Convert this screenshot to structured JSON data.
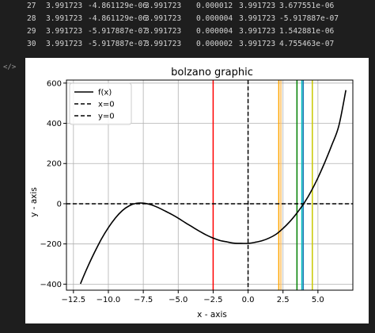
{
  "output_rows": [
    [
      "27",
      "3.991723",
      "-4.861129e-06",
      "3.991723",
      "0.000012",
      "3.991723",
      "3.677551e-06"
    ],
    [
      "28",
      "3.991723",
      "-4.861129e-06",
      "3.991723",
      "0.000004",
      "3.991723",
      "-5.917887e-07"
    ],
    [
      "29",
      "3.991723",
      "-5.917887e-07",
      "3.991723",
      "0.000004",
      "3.991723",
      "1.542881e-06"
    ],
    [
      "30",
      "3.991723",
      "-5.917887e-07",
      "3.991723",
      "0.000002",
      "3.991723",
      "4.755463e-07"
    ]
  ],
  "cell_icon": "</>",
  "chart_data": {
    "type": "line",
    "title": "bolzano graphic",
    "xlabel": "x - axis",
    "ylabel": "y - axis",
    "xlim": [
      -13,
      7.5
    ],
    "ylim": [
      -430,
      615
    ],
    "xticks": [
      -12.5,
      -10.0,
      -7.5,
      -5.0,
      -2.5,
      0.0,
      2.5,
      5.0
    ],
    "xtick_labels": [
      "−12.5",
      "−10.0",
      "−7.5",
      "−5.0",
      "−2.5",
      "0.0",
      "2.5",
      "5.0"
    ],
    "yticks": [
      -400,
      -200,
      0,
      200,
      400,
      600
    ],
    "ytick_labels": [
      "−400",
      "−200",
      "0",
      "200",
      "400",
      "600"
    ],
    "grid": true,
    "legend_position": "upper left",
    "series": [
      {
        "name": "f(x)",
        "color": "#000000",
        "style": "solid",
        "x": [
          -12,
          -11.5,
          -11,
          -10.5,
          -10,
          -9.5,
          -9,
          -8.5,
          -8,
          -7.5,
          -7,
          -6.5,
          -6,
          -5.5,
          -5,
          -4.5,
          -4,
          -3.5,
          -3,
          -2.5,
          -2,
          -1.5,
          -1,
          -0.5,
          0,
          0.5,
          1,
          1.5,
          2,
          2.5,
          3,
          3.5,
          4,
          4.5,
          5,
          5.5,
          6,
          6.5,
          7
        ],
        "y": [
          -398,
          -317,
          -243,
          -176,
          -119,
          -71,
          -34,
          -10,
          2,
          3,
          -4,
          -17,
          -34,
          -52,
          -72,
          -94,
          -115,
          -136,
          -155,
          -171,
          -183,
          -190,
          -196,
          -197,
          -197,
          -192,
          -184,
          -171,
          -152,
          -123,
          -88,
          -46,
          2,
          60,
          129,
          207,
          293,
          388,
          565
        ]
      },
      {
        "name": "x=0",
        "color": "#000000",
        "style": "dashed",
        "orientation": "vertical",
        "value": 0
      },
      {
        "name": "y=0",
        "color": "#000000",
        "style": "dashed",
        "orientation": "horizontal",
        "value": 0
      }
    ],
    "vertical_lines": [
      {
        "x": -2.5,
        "color": "#ff0000"
      },
      {
        "x": 2.2,
        "color": "#ffa500"
      },
      {
        "x": 2.35,
        "color": "#ffbf60"
      },
      {
        "x": 3.5,
        "color": "#008000"
      },
      {
        "x": 3.85,
        "color": "#00bfbf"
      },
      {
        "x": 3.95,
        "color": "#1f77b4"
      },
      {
        "x": 4.6,
        "color": "#c8c800"
      }
    ]
  }
}
